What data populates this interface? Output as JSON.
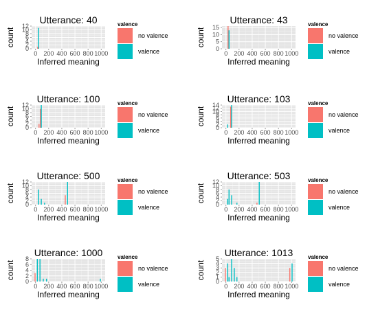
{
  "legend": {
    "title": "valence",
    "items": [
      {
        "label": "no valence",
        "color": "#F8766D"
      },
      {
        "label": "valence",
        "color": "#00BFC4"
      }
    ]
  },
  "axis_labels": {
    "x": "Inferred meaning",
    "y": "count"
  },
  "panel_background": "#E5E5E5",
  "chart_data": [
    {
      "type": "bar",
      "title": "Utterance: 40",
      "xlabel": "Inferred meaning",
      "ylabel": "count",
      "xlim": [
        -60,
        1060
      ],
      "ylim": [
        0,
        12
      ],
      "xticks": [
        0,
        200,
        400,
        600,
        800,
        1000
      ],
      "yticks": [
        0,
        2,
        4,
        6,
        8,
        10,
        12
      ],
      "bin_width": 20,
      "series": [
        {
          "name": "no valence",
          "color": "#F8766D",
          "bins": [
            {
              "x": 40,
              "count": 1
            }
          ]
        },
        {
          "name": "valence",
          "color": "#00BFC4",
          "bins": [
            {
              "x": 40,
              "count": 11
            }
          ]
        }
      ]
    },
    {
      "type": "bar",
      "title": "Utterance: 43",
      "xlabel": "Inferred meaning",
      "ylabel": "count",
      "xlim": [
        -60,
        1060
      ],
      "ylim": [
        0,
        16
      ],
      "xticks": [
        0,
        200,
        400,
        600,
        800,
        1000
      ],
      "yticks": [
        0,
        5,
        10,
        15
      ],
      "bin_width": 20,
      "series": [
        {
          "name": "no valence",
          "color": "#F8766D",
          "bins": [
            {
              "x": 40,
              "count": 16
            }
          ]
        },
        {
          "name": "valence",
          "color": "#00BFC4",
          "bins": [
            {
              "x": 40,
              "count": 13
            }
          ]
        }
      ]
    },
    {
      "type": "bar",
      "title": "Utterance: 100",
      "xlabel": "Inferred meaning",
      "ylabel": "count",
      "xlim": [
        -60,
        1060
      ],
      "ylim": [
        0,
        12
      ],
      "xticks": [
        0,
        200,
        400,
        600,
        800,
        1000
      ],
      "yticks": [
        0,
        2,
        4,
        6,
        8,
        10,
        12
      ],
      "bin_width": 20,
      "series": [
        {
          "name": "no valence",
          "color": "#F8766D",
          "bins": [
            {
              "x": 60,
              "count": 2
            },
            {
              "x": 80,
              "count": 10
            }
          ]
        },
        {
          "name": "valence",
          "color": "#00BFC4",
          "bins": [
            {
              "x": 80,
              "count": 12
            }
          ]
        }
      ]
    },
    {
      "type": "bar",
      "title": "Utterance: 103",
      "xlabel": "Inferred meaning",
      "ylabel": "count",
      "xlim": [
        -60,
        1060
      ],
      "ylim": [
        0,
        14
      ],
      "xticks": [
        0,
        200,
        400,
        600,
        800,
        1000
      ],
      "yticks": [
        0,
        2,
        4,
        6,
        8,
        10,
        12,
        14
      ],
      "bin_width": 20,
      "series": [
        {
          "name": "no valence",
          "color": "#F8766D",
          "bins": [
            {
              "x": 80,
              "count": 13
            }
          ]
        },
        {
          "name": "valence",
          "color": "#00BFC4",
          "bins": [
            {
              "x": 20,
              "count": 2
            },
            {
              "x": 80,
              "count": 14
            }
          ]
        }
      ]
    },
    {
      "type": "bar",
      "title": "Utterance: 500",
      "xlabel": "Inferred meaning",
      "ylabel": "count",
      "xlim": [
        -60,
        1060
      ],
      "ylim": [
        0,
        12
      ],
      "xticks": [
        0,
        200,
        400,
        600,
        800,
        1000
      ],
      "yticks": [
        0,
        2,
        4,
        6,
        8,
        10,
        12
      ],
      "bin_width": 20,
      "series": [
        {
          "name": "no valence",
          "color": "#F8766D",
          "bins": [
            {
              "x": 460,
              "count": 5
            }
          ]
        },
        {
          "name": "valence",
          "color": "#00BFC4",
          "bins": [
            {
              "x": 40,
              "count": 8
            },
            {
              "x": 80,
              "count": 3
            },
            {
              "x": 130,
              "count": 1
            },
            {
              "x": 480,
              "count": 12
            }
          ]
        }
      ]
    },
    {
      "type": "bar",
      "title": "Utterance: 503",
      "xlabel": "Inferred meaning",
      "ylabel": "count",
      "xlim": [
        -60,
        1060
      ],
      "ylim": [
        0,
        12
      ],
      "xticks": [
        0,
        200,
        400,
        600,
        800,
        1000
      ],
      "yticks": [
        0,
        2,
        4,
        6,
        8,
        10,
        12
      ],
      "bin_width": 20,
      "series": [
        {
          "name": "no valence",
          "color": "#F8766D",
          "bins": [
            {
              "x": 480,
              "count": 1
            }
          ]
        },
        {
          "name": "valence",
          "color": "#00BFC4",
          "bins": [
            {
              "x": 20,
              "count": 3
            },
            {
              "x": 40,
              "count": 8
            },
            {
              "x": 80,
              "count": 5
            },
            {
              "x": 160,
              "count": 1
            },
            {
              "x": 500,
              "count": 12
            }
          ]
        }
      ]
    },
    {
      "type": "bar",
      "title": "Utterance: 1000",
      "xlabel": "Inferred meaning",
      "ylabel": "count",
      "xlim": [
        -60,
        1060
      ],
      "ylim": [
        0,
        8
      ],
      "xticks": [
        0,
        200,
        400,
        600,
        800,
        1000
      ],
      "yticks": [
        0,
        2,
        4,
        6,
        8
      ],
      "bin_width": 20,
      "series": [
        {
          "name": "no valence",
          "color": "#F8766D",
          "bins": [
            {
              "x": 0,
              "count": 3
            }
          ]
        },
        {
          "name": "valence",
          "color": "#00BFC4",
          "bins": [
            {
              "x": 20,
              "count": 8
            },
            {
              "x": 60,
              "count": 8
            },
            {
              "x": 110,
              "count": 1
            },
            {
              "x": 160,
              "count": 1
            },
            {
              "x": 980,
              "count": 1
            }
          ]
        }
      ]
    },
    {
      "type": "bar",
      "title": "Utterance: 1013",
      "xlabel": "Inferred meaning",
      "ylabel": "count",
      "xlim": [
        -60,
        1060
      ],
      "ylim": [
        0,
        5
      ],
      "xticks": [
        0,
        200,
        400,
        600,
        800,
        1000
      ],
      "yticks": [
        0,
        1,
        2,
        3,
        4,
        5
      ],
      "bin_width": 20,
      "series": [
        {
          "name": "no valence",
          "color": "#F8766D",
          "bins": [
            {
              "x": 0,
              "count": 3
            },
            {
              "x": 980,
              "count": 3
            }
          ]
        },
        {
          "name": "valence",
          "color": "#00BFC4",
          "bins": [
            {
              "x": 20,
              "count": 4
            },
            {
              "x": 40,
              "count": 1
            },
            {
              "x": 80,
              "count": 5
            },
            {
              "x": 120,
              "count": 3
            },
            {
              "x": 160,
              "count": 1
            },
            {
              "x": 1000,
              "count": 4
            }
          ]
        }
      ]
    }
  ]
}
